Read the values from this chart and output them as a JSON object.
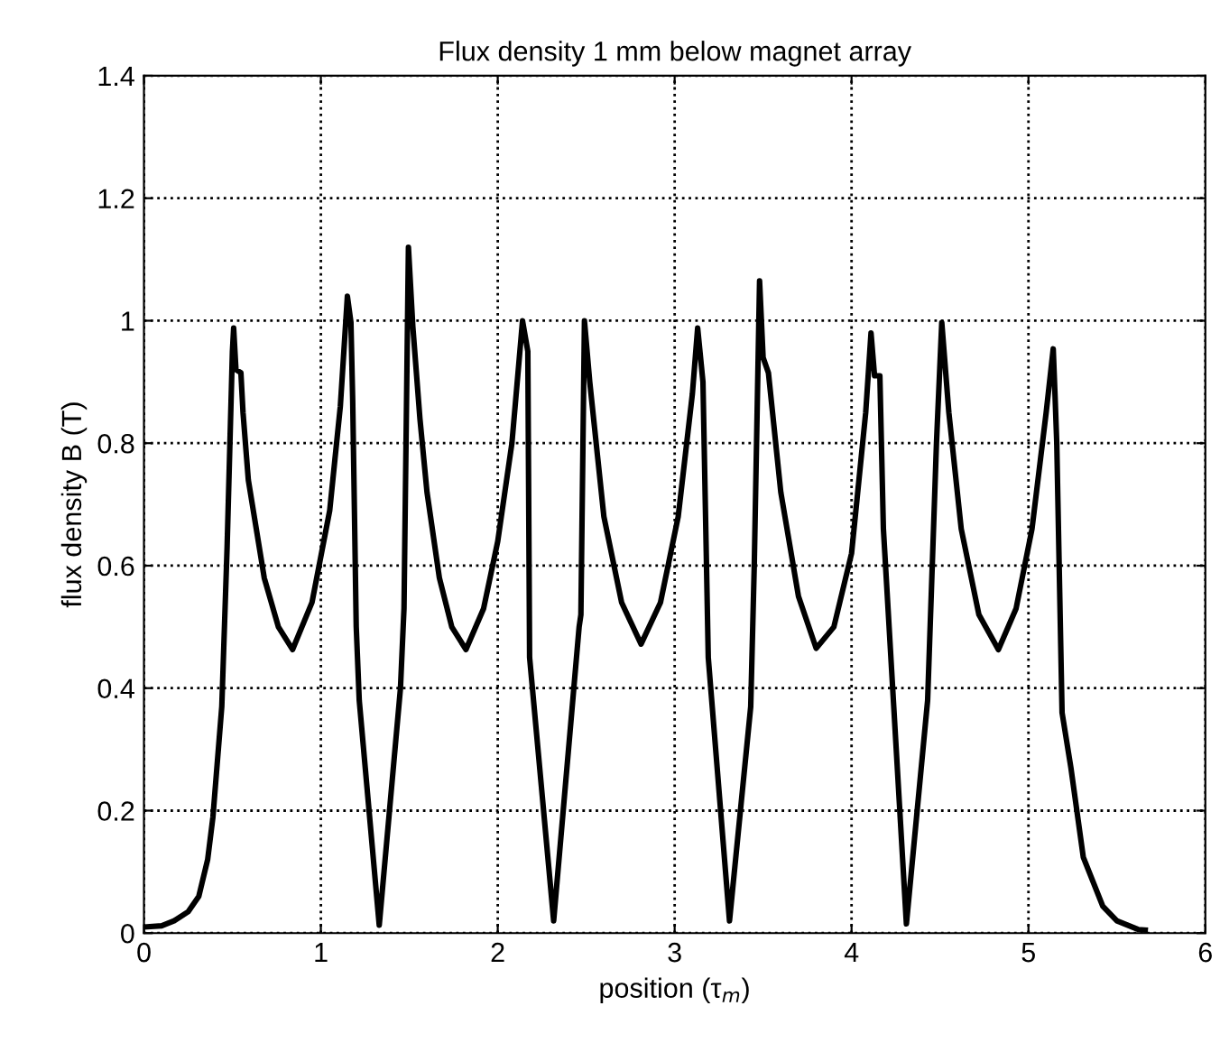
{
  "chart_data": {
    "type": "line",
    "title": "Flux density 1 mm below magnet array",
    "xlabel": "position (τ$_{m}$)",
    "ylabel": "flux density B (T)",
    "xlim": [
      0,
      6
    ],
    "ylim": [
      0,
      1.4
    ],
    "xticks": [
      0,
      1,
      2,
      3,
      4,
      5,
      6
    ],
    "yticks": [
      0,
      0.2,
      0.4,
      0.6,
      0.8,
      1,
      1.2,
      1.4
    ],
    "grid": true,
    "line_style": "solid",
    "marker": "none",
    "series": [
      {
        "color": "#000000",
        "x": [
          0,
          0.1,
          0.17,
          0.25,
          0.31,
          0.36,
          0.39,
          0.44,
          0.47,
          0.5,
          0.507,
          0.52,
          0.548,
          0.56,
          0.59,
          0.68,
          0.76,
          0.84,
          0.95,
          1.05,
          1.11,
          1.15,
          1.17,
          1.18,
          1.2,
          1.217,
          1.33,
          1.45,
          1.47,
          1.495,
          1.52,
          1.56,
          1.6,
          1.67,
          1.74,
          1.82,
          1.92,
          2.0,
          2.08,
          2.14,
          2.17,
          2.18,
          2.316,
          2.46,
          2.47,
          2.49,
          2.52,
          2.6,
          2.7,
          2.81,
          2.92,
          3.02,
          3.1,
          3.13,
          3.16,
          3.19,
          3.31,
          3.43,
          3.45,
          3.48,
          3.5,
          3.53,
          3.6,
          3.7,
          3.8,
          3.9,
          4.0,
          4.08,
          4.11,
          4.13,
          4.16,
          4.18,
          4.31,
          4.43,
          4.48,
          4.51,
          4.55,
          4.62,
          4.72,
          4.83,
          4.93,
          5.02,
          5.1,
          5.14,
          5.15,
          5.16,
          5.19,
          5.24,
          5.31,
          5.42,
          5.5,
          5.62,
          5.66
        ],
        "values": [
          0.01,
          0.012,
          0.02,
          0.035,
          0.06,
          0.12,
          0.19,
          0.37,
          0.63,
          0.95,
          0.988,
          0.92,
          0.915,
          0.85,
          0.74,
          0.58,
          0.5,
          0.463,
          0.54,
          0.69,
          0.86,
          1.04,
          0.997,
          0.87,
          0.5,
          0.38,
          0.013,
          0.4,
          0.53,
          1.12,
          0.99,
          0.84,
          0.72,
          0.58,
          0.5,
          0.463,
          0.53,
          0.64,
          0.8,
          1.0,
          0.95,
          0.45,
          0.02,
          0.5,
          0.52,
          1.0,
          0.9,
          0.68,
          0.54,
          0.472,
          0.54,
          0.68,
          0.88,
          0.988,
          0.9,
          0.45,
          0.02,
          0.37,
          0.6,
          1.065,
          0.94,
          0.915,
          0.72,
          0.55,
          0.465,
          0.5,
          0.62,
          0.85,
          0.98,
          0.91,
          0.91,
          0.66,
          0.015,
          0.38,
          0.8,
          0.997,
          0.85,
          0.66,
          0.52,
          0.463,
          0.53,
          0.66,
          0.85,
          0.954,
          0.88,
          0.8,
          0.36,
          0.27,
          0.124,
          0.044,
          0.02,
          0.006,
          0.005
        ]
      }
    ]
  }
}
